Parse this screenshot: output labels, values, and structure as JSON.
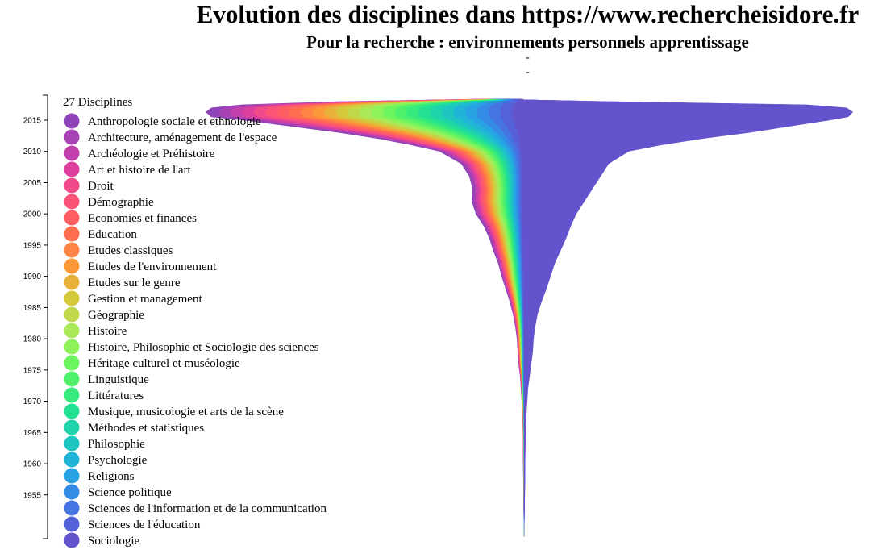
{
  "header": {
    "title": "Evolution des disciplines dans https://www.rechercheisidore.fr",
    "subtitle": "Pour la recherche : environnements personnels apprentissage",
    "line1": "-",
    "line2": "-"
  },
  "chart_data": {
    "type": "area",
    "subtype": "streamgraph",
    "orientation": "vertical",
    "legend_title": "27 Disciplines",
    "year_axis": {
      "range": [
        1948,
        2019
      ],
      "ticks": [
        1955,
        1960,
        1965,
        1970,
        1975,
        1980,
        1985,
        1990,
        1995,
        2000,
        2005,
        2010,
        2015
      ]
    },
    "series": [
      {
        "name": "Anthropologie sociale et ethnologie",
        "color": "#8e44b8"
      },
      {
        "name": "Architecture, aménagement de l'espace",
        "color": "#a642b4"
      },
      {
        "name": "Archéologie et Préhistoire",
        "color": "#c23fae"
      },
      {
        "name": "Art et histoire de l'art",
        "color": "#dc3f9e"
      },
      {
        "name": "Droit",
        "color": "#f04a8a"
      },
      {
        "name": "Démographie",
        "color": "#fb5477"
      },
      {
        "name": "Economies et finances",
        "color": "#ff5f63"
      },
      {
        "name": "Education",
        "color": "#ff6e4f"
      },
      {
        "name": "Etudes classiques",
        "color": "#ff8344"
      },
      {
        "name": "Etudes de l'environnement",
        "color": "#fb9939"
      },
      {
        "name": "Etudes sur le genre",
        "color": "#e8b23a"
      },
      {
        "name": "Gestion et management",
        "color": "#d4c83b"
      },
      {
        "name": "Géographie",
        "color": "#c0d94a"
      },
      {
        "name": "Histoire",
        "color": "#aaea5a"
      },
      {
        "name": "Histoire, Philosophie et Sociologie des sciences",
        "color": "#8ef35a"
      },
      {
        "name": "Héritage culturel et muséologie",
        "color": "#6cf55e"
      },
      {
        "name": "Linguistique",
        "color": "#50f16a"
      },
      {
        "name": "Littératures",
        "color": "#36ea7e"
      },
      {
        "name": "Musique, musicologie et arts de la scène",
        "color": "#24e192"
      },
      {
        "name": "Méthodes et statistiques",
        "color": "#1fd4aa"
      },
      {
        "name": "Philosophie",
        "color": "#1ec6c2"
      },
      {
        "name": "Psychologie",
        "color": "#20b5d6"
      },
      {
        "name": "Religions",
        "color": "#27a2e2"
      },
      {
        "name": "Science politique",
        "color": "#348be6"
      },
      {
        "name": "Sciences de l'information et de la communication",
        "color": "#4673e2"
      },
      {
        "name": "Sciences de l'éducation",
        "color": "#5561d8"
      },
      {
        "name": "Sociologie",
        "color": "#6353cc"
      }
    ]
  }
}
